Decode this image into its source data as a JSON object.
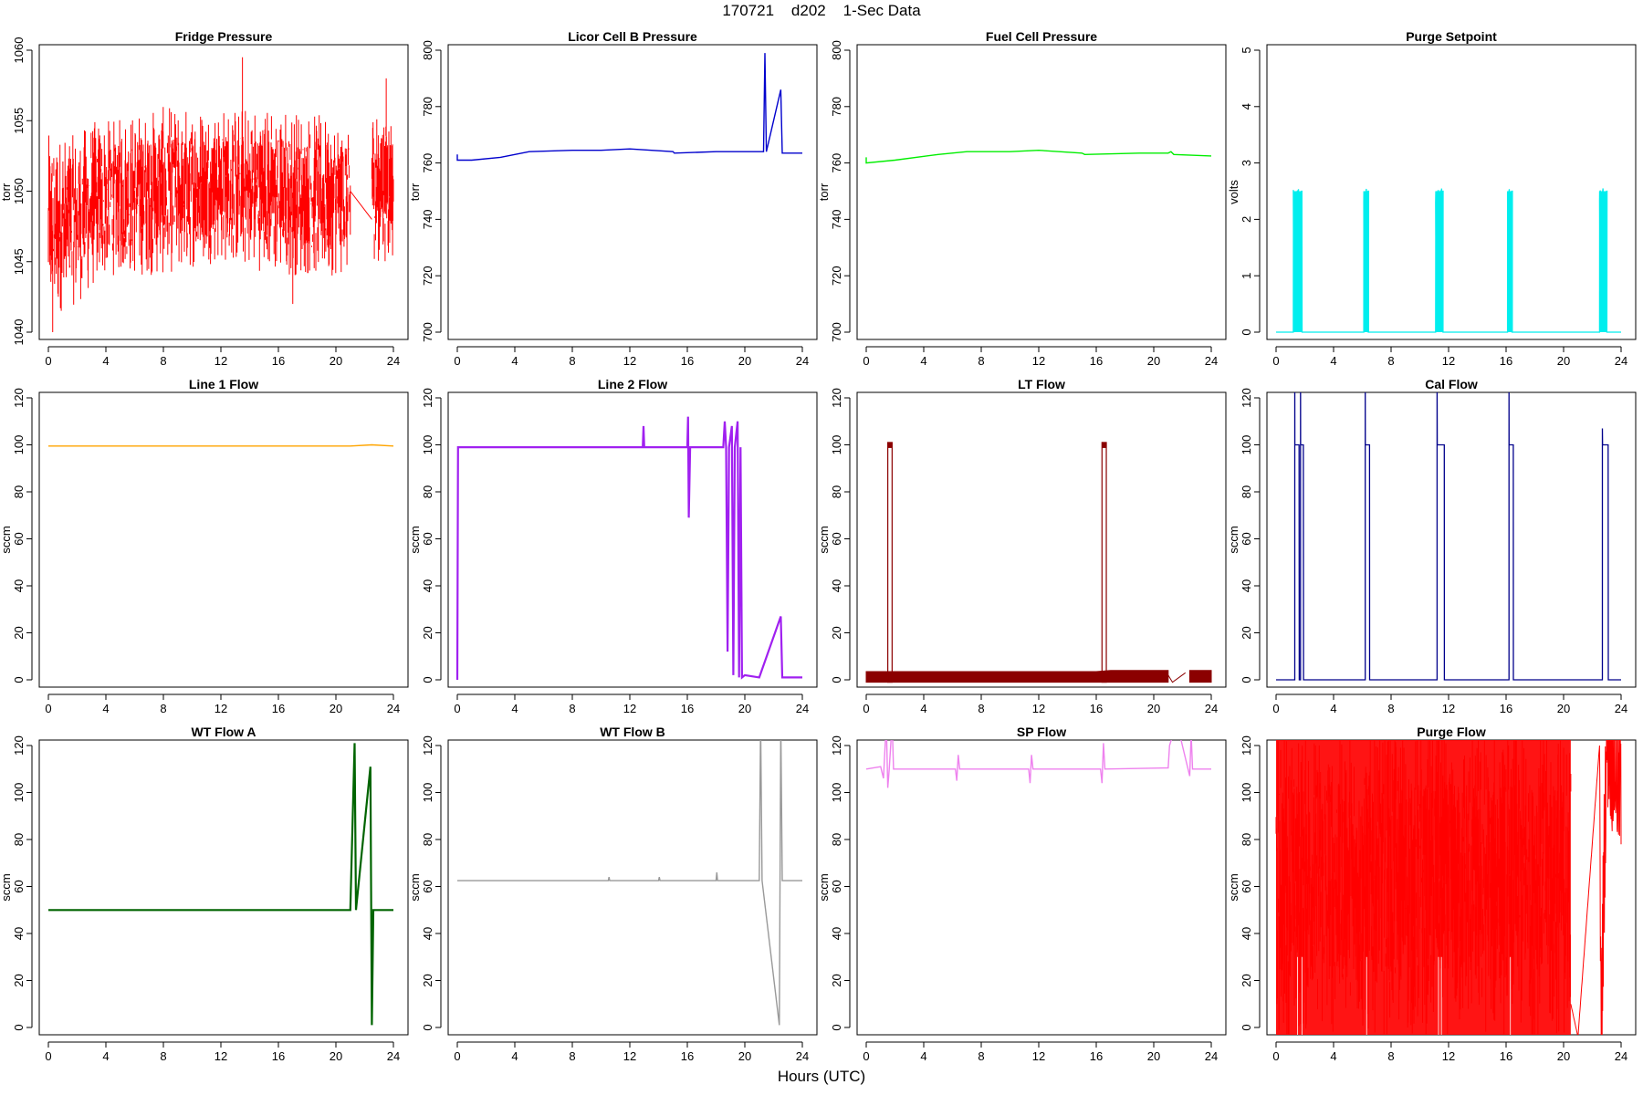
{
  "title": "170721    d202    1-Sec Data",
  "xlabel": "Hours (UTC)",
  "chart_data": [
    {
      "type": "line",
      "title": "Fridge Pressure",
      "ylabel": "torr",
      "color": "#ff0000",
      "xlim": [
        0,
        24
      ],
      "ylim": [
        1040,
        1060
      ],
      "xticks": [
        0,
        4,
        8,
        12,
        16,
        20,
        24
      ],
      "yticks": [
        1040,
        1045,
        1050,
        1055,
        1060
      ],
      "series": [
        {
          "noise_band": [
            [
              0,
              1041,
              1054
            ],
            [
              2,
              1042,
              1054
            ],
            [
              3,
              1043,
              1055
            ],
            [
              4,
              1044,
              1055
            ],
            [
              8,
              1044,
              1056
            ],
            [
              12,
              1045,
              1056
            ],
            [
              16,
              1044,
              1056
            ],
            [
              21,
              1044,
              1055
            ]
          ],
          "segments": [
            [
              [
                21,
                1050
              ],
              [
                22.5,
                1048
              ]
            ]
          ],
          "band2": [
            [
              22.5,
              1045,
              1056
            ],
            [
              24,
              1045,
              1056
            ]
          ],
          "spikes": [
            [
              13.5,
              1059.5
            ],
            [
              0.3,
              1040
            ],
            [
              17,
              1042
            ],
            [
              23.5,
              1058
            ]
          ]
        }
      ]
    },
    {
      "type": "line",
      "title": "Licor Cell B Pressure",
      "ylabel": "torr",
      "color": "#0000cd",
      "xlim": [
        0,
        24
      ],
      "ylim": [
        700,
        800
      ],
      "xticks": [
        0,
        4,
        8,
        12,
        16,
        20,
        24
      ],
      "yticks": [
        700,
        720,
        740,
        760,
        780,
        800
      ],
      "series": [
        {
          "points": [
            [
              0,
              763
            ],
            [
              0,
              761
            ],
            [
              1,
              761
            ],
            [
              3,
              762
            ],
            [
              5,
              764
            ],
            [
              8,
              764.5
            ],
            [
              10,
              764.5
            ],
            [
              12,
              765
            ],
            [
              15,
              764
            ],
            [
              15.1,
              763.5
            ],
            [
              18,
              764
            ],
            [
              21,
              764
            ],
            [
              21.3,
              764
            ],
            [
              21.4,
              799
            ],
            [
              21.5,
              764
            ],
            [
              22.5,
              786
            ],
            [
              22.6,
              763.5
            ],
            [
              24,
              763.5
            ]
          ]
        }
      ]
    },
    {
      "type": "line",
      "title": "Fuel Cell Pressure",
      "ylabel": "torr",
      "color": "#00ee00",
      "xlim": [
        0,
        24
      ],
      "ylim": [
        700,
        800
      ],
      "xticks": [
        0,
        4,
        8,
        12,
        16,
        20,
        24
      ],
      "yticks": [
        700,
        720,
        740,
        760,
        780,
        800
      ],
      "series": [
        {
          "points": [
            [
              0,
              762
            ],
            [
              0,
              760
            ],
            [
              2,
              761
            ],
            [
              5,
              763
            ],
            [
              7,
              764
            ],
            [
              10,
              764
            ],
            [
              12,
              764.5
            ],
            [
              15,
              763.5
            ],
            [
              15.2,
              763
            ],
            [
              19,
              763.5
            ],
            [
              21,
              763.5
            ],
            [
              21.2,
              764
            ],
            [
              21.4,
              763
            ],
            [
              24,
              762.5
            ]
          ]
        }
      ]
    },
    {
      "type": "line",
      "title": "Purge Setpoint",
      "ylabel": "volts",
      "color": "#00eeee",
      "xlim": [
        0,
        24
      ],
      "ylim": [
        0,
        5
      ],
      "xticks": [
        0,
        4,
        8,
        12,
        16,
        20,
        24
      ],
      "yticks": [
        0,
        1,
        2,
        3,
        4,
        5
      ],
      "series": [
        {
          "baseline": 0,
          "pulses": [
            [
              1.2,
              1.8,
              2.5
            ],
            [
              6.1,
              6.4,
              2.5
            ],
            [
              11.1,
              11.6,
              2.5
            ],
            [
              16.1,
              16.4,
              2.5
            ],
            [
              22.5,
              23,
              2.5
            ]
          ]
        }
      ]
    },
    {
      "type": "line",
      "title": "Line 1 Flow",
      "ylabel": "sccm",
      "color": "#ffa500",
      "xlim": [
        0,
        24
      ],
      "ylim": [
        -4,
        128
      ],
      "xticks": [
        0,
        4,
        8,
        12,
        16,
        20,
        24
      ],
      "yticks": [
        0,
        20,
        40,
        60,
        80,
        100,
        120
      ],
      "series": [
        {
          "points": [
            [
              0,
              99.5
            ],
            [
              21,
              99.5
            ],
            [
              22.5,
              100
            ],
            [
              24,
              99.5
            ]
          ]
        }
      ]
    },
    {
      "type": "line",
      "title": "Line 2 Flow",
      "ylabel": "sccm",
      "color": "#a020f0",
      "xlim": [
        0,
        24
      ],
      "ylim": [
        -4,
        128
      ],
      "xticks": [
        0,
        4,
        8,
        12,
        16,
        20,
        24
      ],
      "yticks": [
        0,
        20,
        40,
        60,
        80,
        100,
        120
      ],
      "series": [
        {
          "points": [
            [
              0,
              0
            ],
            [
              0.05,
              99
            ],
            [
              12.9,
              99
            ],
            [
              12.95,
              108
            ],
            [
              13,
              99
            ],
            [
              16,
              99
            ],
            [
              16.05,
              112
            ],
            [
              16.1,
              69
            ],
            [
              16.2,
              99
            ],
            [
              18.5,
              99
            ],
            [
              18.6,
              110
            ],
            [
              18.7,
              99
            ],
            [
              18.8,
              12
            ],
            [
              18.9,
              99
            ],
            [
              19.1,
              108
            ],
            [
              19.2,
              2
            ],
            [
              19.3,
              99
            ],
            [
              19.5,
              110
            ],
            [
              19.6,
              1
            ],
            [
              19.7,
              99
            ],
            [
              19.8,
              1
            ],
            [
              20,
              2
            ],
            [
              21,
              1
            ],
            [
              22.5,
              27
            ],
            [
              22.6,
              1
            ],
            [
              24,
              1
            ]
          ]
        }
      ]
    },
    {
      "type": "line",
      "title": "LT Flow",
      "ylabel": "sccm",
      "color": "#8b0000",
      "xlim": [
        0,
        24
      ],
      "ylim": [
        -4,
        128
      ],
      "xticks": [
        0,
        4,
        8,
        12,
        16,
        20,
        24
      ],
      "yticks": [
        0,
        20,
        40,
        60,
        80,
        100,
        120
      ],
      "series": [
        {
          "band": [
            [
              0,
              -1,
              3.5
            ],
            [
              1.5,
              -1,
              3.5
            ],
            [
              3,
              -1,
              3.5
            ],
            [
              16,
              -1,
              3.5
            ],
            [
              17,
              -1,
              4
            ],
            [
              21,
              -1,
              4
            ]
          ],
          "pulses": [
            [
              1.5,
              1.8,
              101
            ],
            [
              16.4,
              16.7,
              101
            ]
          ],
          "tail": [
            [
              21,
              2
            ],
            [
              21.3,
              -1
            ],
            [
              22.2,
              3
            ],
            [
              22.5,
              4
            ],
            [
              22.6,
              -1
            ],
            [
              24,
              4
            ]
          ]
        }
      ]
    },
    {
      "type": "line",
      "title": "Cal Flow",
      "ylabel": "sccm",
      "color": "#00008b",
      "xlim": [
        0,
        24
      ],
      "ylim": [
        -4,
        128
      ],
      "xticks": [
        0,
        4,
        8,
        12,
        16,
        20,
        24
      ],
      "yticks": [
        0,
        20,
        40,
        60,
        80,
        100,
        120
      ],
      "series": [
        {
          "baseline": 0,
          "pulses": [
            [
              1.3,
              1.6,
              100,
              130
            ],
            [
              1.7,
              1.9,
              100,
              130
            ],
            [
              6.2,
              6.5,
              100,
              126
            ],
            [
              11.2,
              11.7,
              100,
              130
            ],
            [
              16.2,
              16.5,
              100,
              125
            ],
            [
              22.7,
              23.1,
              100,
              107
            ]
          ]
        }
      ]
    },
    {
      "type": "line",
      "title": "WT Flow A",
      "ylabel": "sccm",
      "color": "#006400",
      "xlim": [
        0,
        24
      ],
      "ylim": [
        -4,
        128
      ],
      "xticks": [
        0,
        4,
        8,
        12,
        16,
        20,
        24
      ],
      "yticks": [
        0,
        20,
        40,
        60,
        80,
        100,
        120
      ],
      "series": [
        {
          "points": [
            [
              0,
              50
            ],
            [
              21,
              50
            ],
            [
              21.3,
              121
            ],
            [
              21.4,
              50
            ],
            [
              22.4,
              111
            ],
            [
              22.5,
              1
            ],
            [
              22.6,
              50
            ],
            [
              24,
              50
            ]
          ]
        }
      ]
    },
    {
      "type": "line",
      "title": "WT Flow B",
      "ylabel": "sccm",
      "color": "#999999",
      "xlim": [
        0,
        24
      ],
      "ylim": [
        -4,
        128
      ],
      "xticks": [
        0,
        4,
        8,
        12,
        16,
        20,
        24
      ],
      "yticks": [
        0,
        20,
        40,
        60,
        80,
        100,
        120
      ],
      "series": [
        {
          "points": [
            [
              0,
              62.5
            ],
            [
              10.5,
              62.5
            ],
            [
              10.55,
              64
            ],
            [
              10.6,
              62.5
            ],
            [
              14,
              62.5
            ],
            [
              14.05,
              64
            ],
            [
              14.1,
              62.5
            ],
            [
              18,
              62.5
            ],
            [
              18.05,
              66
            ],
            [
              18.1,
              62.5
            ],
            [
              21,
              62.5
            ],
            [
              21.1,
              130
            ],
            [
              21.2,
              62.5
            ],
            [
              22.4,
              1
            ],
            [
              22.5,
              130
            ],
            [
              22.6,
              62.5
            ],
            [
              24,
              62.5
            ]
          ]
        }
      ]
    },
    {
      "type": "line",
      "title": "SP Flow",
      "ylabel": "sccm",
      "color": "#ee82ee",
      "xlim": [
        0,
        24
      ],
      "ylim": [
        -4,
        128
      ],
      "xticks": [
        0,
        4,
        8,
        12,
        16,
        20,
        24
      ],
      "yticks": [
        0,
        20,
        40,
        60,
        80,
        100,
        120
      ],
      "series": [
        {
          "points": [
            [
              0,
              110
            ],
            [
              1,
              111
            ],
            [
              1.2,
              106
            ],
            [
              1.4,
              130
            ],
            [
              1.5,
              102
            ],
            [
              1.6,
              110
            ],
            [
              1.8,
              130
            ],
            [
              1.9,
              110
            ],
            [
              3,
              110
            ],
            [
              6.2,
              110
            ],
            [
              6.3,
              105
            ],
            [
              6.4,
              116
            ],
            [
              6.5,
              110
            ],
            [
              11.3,
              110
            ],
            [
              11.4,
              104
            ],
            [
              11.5,
              116
            ],
            [
              11.6,
              110
            ],
            [
              16.3,
              110
            ],
            [
              16.4,
              104
            ],
            [
              16.5,
              121
            ],
            [
              16.6,
              110
            ],
            [
              21,
              110.5
            ],
            [
              21.1,
              120
            ],
            [
              21.6,
              130
            ],
            [
              22.5,
              107
            ],
            [
              22.6,
              125
            ],
            [
              22.7,
              110
            ],
            [
              24,
              110
            ]
          ]
        }
      ]
    },
    {
      "type": "line",
      "title": "Purge Flow",
      "ylabel": "sccm",
      "color": "#ff0000",
      "xlim": [
        0,
        24
      ],
      "ylim": [
        -4,
        128
      ],
      "xticks": [
        0,
        4,
        8,
        12,
        16,
        20,
        24
      ],
      "yticks": [
        0,
        20,
        40,
        60,
        80,
        100,
        120
      ],
      "series": [
        {
          "band": [
            [
              0,
              -4,
              128
            ],
            [
              19,
              -4,
              128
            ],
            [
              20.5,
              -4,
              128
            ]
          ],
          "tail": [
            [
              20.5,
              10
            ],
            [
              21,
              -4
            ],
            [
              22.5,
              120
            ],
            [
              22.6,
              -4
            ],
            [
              23,
              128
            ],
            [
              24,
              100
            ]
          ]
        }
      ]
    }
  ]
}
